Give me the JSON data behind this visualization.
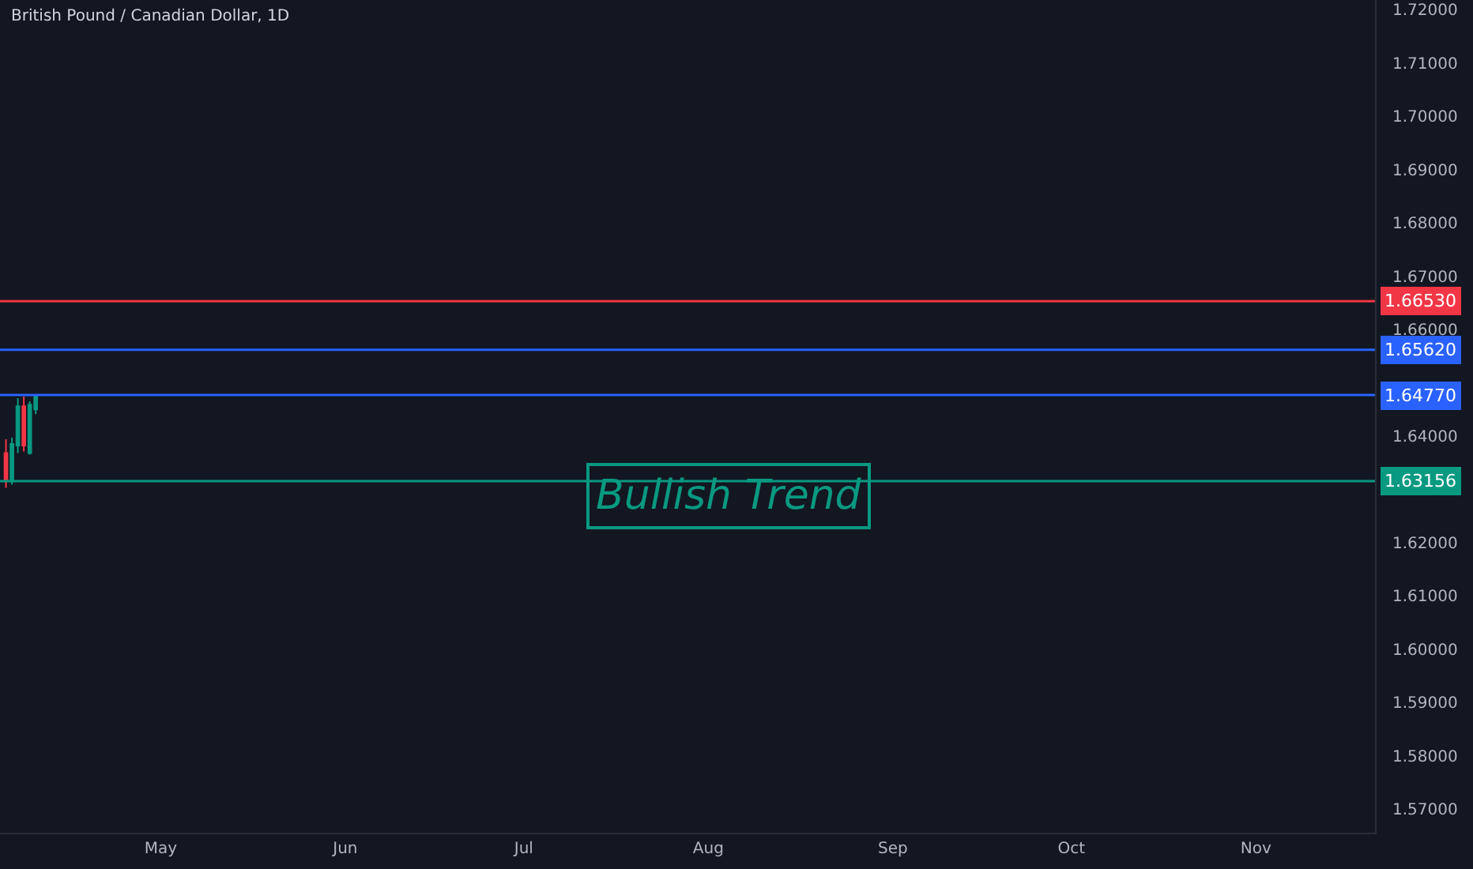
{
  "chart_data": {
    "type": "candlestick",
    "title": "British Pound / Canadian Dollar, 1D",
    "x": [
      "--04-05",
      "--04-06",
      "--04-07",
      "--04-08",
      "--04-09",
      "--04-10"
    ],
    "ohlc": [
      [
        1.6368,
        1.6394,
        1.6303,
        1.6315
      ],
      [
        1.6315,
        1.6397,
        1.6309,
        1.6385
      ],
      [
        1.6382,
        1.6471,
        1.6368,
        1.6456
      ],
      [
        1.6456,
        1.6474,
        1.6371,
        1.6382
      ],
      [
        1.6368,
        1.6465,
        1.6365,
        1.6459
      ],
      [
        1.645,
        1.6476,
        1.6441,
        1.6474
      ]
    ],
    "colors": [
      "#f23645",
      "#089981",
      "#089981",
      "#f23645",
      "#089981",
      "#089981"
    ],
    "xlim": [
      "--04-04",
      "--11-21"
    ],
    "xticks": [
      {
        "value": "--05-01",
        "label": "May"
      },
      {
        "value": "--06-01",
        "label": "Jun"
      },
      {
        "value": "--07-01",
        "label": "Jul"
      },
      {
        "value": "--08-01",
        "label": "Aug"
      },
      {
        "value": "--09-01",
        "label": "Sep"
      },
      {
        "value": "--10-01",
        "label": "Oct"
      },
      {
        "value": "--11-01",
        "label": "Nov"
      }
    ],
    "ylim": [
      1.5656,
      1.7218
    ],
    "yticks": [
      {
        "value": 1.57,
        "label": "1.57000"
      },
      {
        "value": 1.58,
        "label": "1.58000"
      },
      {
        "value": 1.59,
        "label": "1.59000"
      },
      {
        "value": 1.6,
        "label": "1.60000"
      },
      {
        "value": 1.61,
        "label": "1.61000"
      },
      {
        "value": 1.62,
        "label": "1.62000"
      },
      {
        "value": 1.64,
        "label": "1.64000"
      },
      {
        "value": 1.66,
        "label": "1.66000"
      },
      {
        "value": 1.67,
        "label": "1.67000"
      },
      {
        "value": 1.68,
        "label": "1.68000"
      },
      {
        "value": 1.69,
        "label": "1.69000"
      },
      {
        "value": 1.7,
        "label": "1.70000"
      },
      {
        "value": 1.71,
        "label": "1.71000"
      },
      {
        "value": 1.72,
        "label": "1.72000"
      }
    ],
    "ref_lines": [
      {
        "axis": "y",
        "value": 1.6653,
        "label": "1.66530",
        "color": "#f23645"
      },
      {
        "axis": "y",
        "value": 1.6562,
        "label": "1.65620",
        "color": "#2962ff"
      },
      {
        "axis": "y",
        "value": 1.6477,
        "label": "1.64770",
        "color": "#2962ff"
      },
      {
        "axis": "y",
        "value": 1.63156,
        "label": "1.63156",
        "color": "#089981"
      }
    ],
    "annotations": [
      "Bullish Trend"
    ]
  }
}
